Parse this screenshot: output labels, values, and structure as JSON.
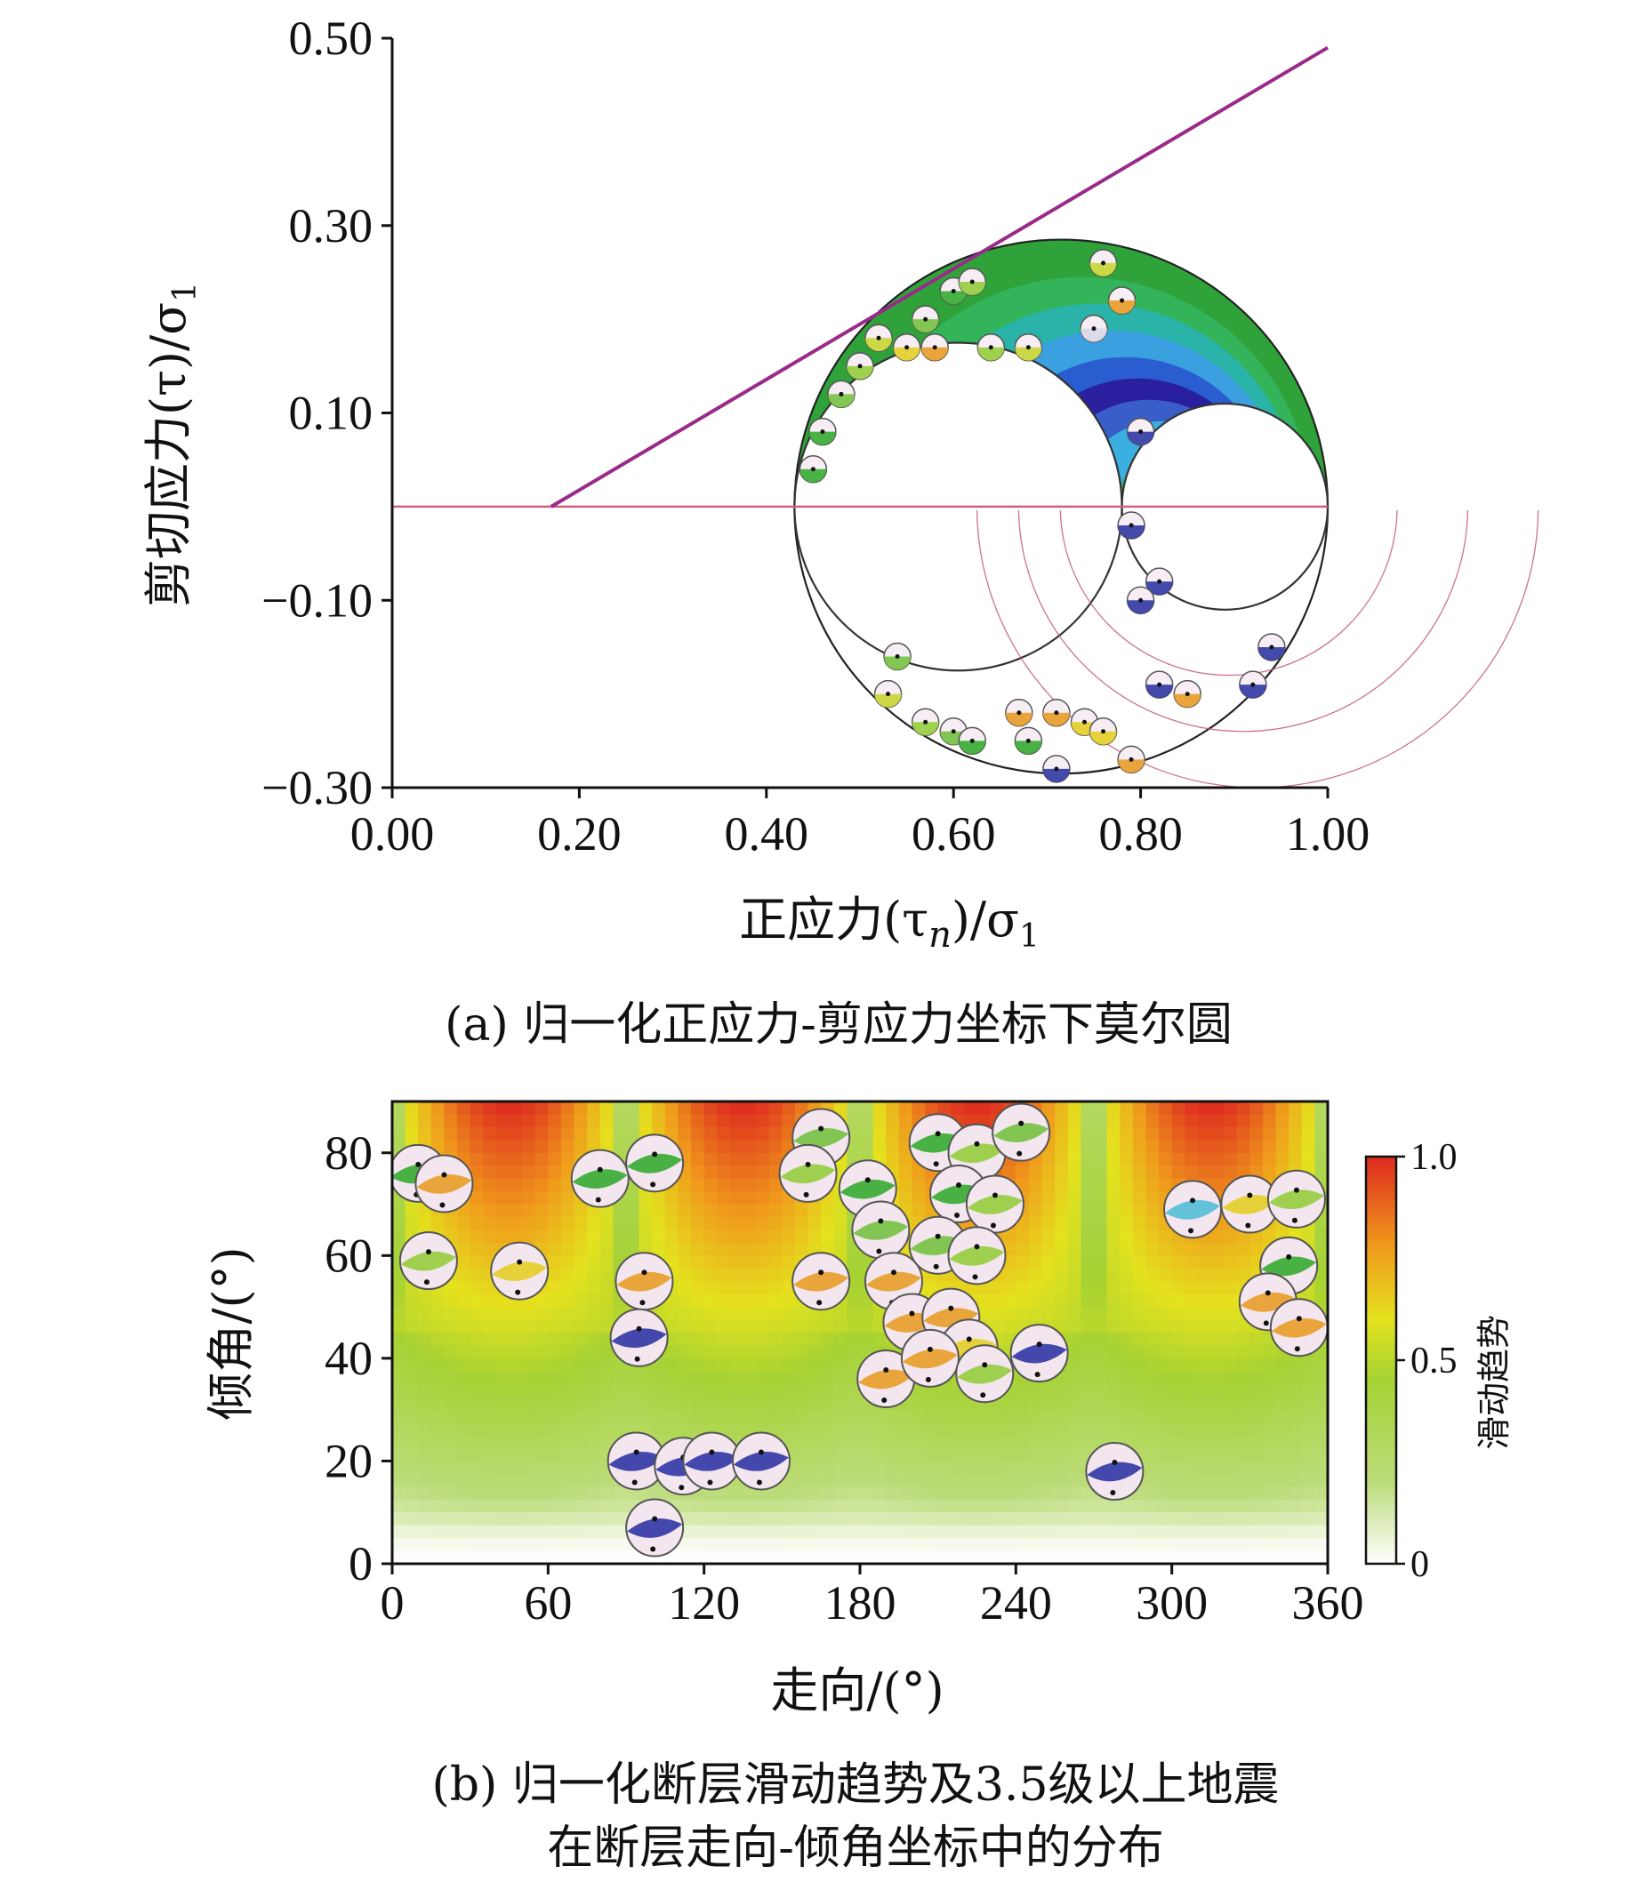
{
  "chart_data": [
    {
      "type": "scatter",
      "panel": "a",
      "caption": "(a) 归一化正应力-剪应力坐标下莫尔圆",
      "xlabel": "正应力(τ",
      "xlabel_sub": "n",
      "xlabel_tail": ")/σ",
      "xlabel_tail_sub": "1",
      "ylabel": "剪切应力(τ)/σ",
      "ylabel_sub": "1",
      "xlim": [
        0.0,
        1.0
      ],
      "ylim": [
        -0.3,
        0.5
      ],
      "xticks": [
        "0.00",
        "0.20",
        "0.40",
        "0.60",
        "0.80",
        "1.00"
      ],
      "yticks": [
        "0.50",
        "0.30",
        "0.10",
        "−0.10",
        "−0.30"
      ],
      "failure_line": {
        "x": [
          0.17,
          1.0
        ],
        "y": [
          0.0,
          0.49
        ]
      },
      "baseline_y": 0.0,
      "mohr_circles": [
        {
          "sigma3": 0.43,
          "sigma1": 1.0
        },
        {
          "sigma3": 0.43,
          "sigma2": 0.78
        },
        {
          "sigma2": 0.78,
          "sigma1": 1.0
        }
      ],
      "points": [
        {
          "x": 0.45,
          "y": 0.04,
          "c": "#3fae3a"
        },
        {
          "x": 0.46,
          "y": 0.08,
          "c": "#3fae3a"
        },
        {
          "x": 0.48,
          "y": 0.12,
          "c": "#7bc34a"
        },
        {
          "x": 0.5,
          "y": 0.15,
          "c": "#9acd44"
        },
        {
          "x": 0.52,
          "y": 0.18,
          "c": "#c9d63b"
        },
        {
          "x": 0.55,
          "y": 0.17,
          "c": "#e5d030"
        },
        {
          "x": 0.57,
          "y": 0.2,
          "c": "#7bc34a"
        },
        {
          "x": 0.6,
          "y": 0.23,
          "c": "#3fae3a"
        },
        {
          "x": 0.62,
          "y": 0.24,
          "c": "#9acd44"
        },
        {
          "x": 0.58,
          "y": 0.17,
          "c": "#e8a030"
        },
        {
          "x": 0.64,
          "y": 0.17,
          "c": "#9acd44"
        },
        {
          "x": 0.68,
          "y": 0.17,
          "c": "#c9d63b"
        },
        {
          "x": 0.76,
          "y": 0.26,
          "c": "#c9d63b"
        },
        {
          "x": 0.78,
          "y": 0.22,
          "c": "#e8a030"
        },
        {
          "x": 0.75,
          "y": 0.19,
          "c": "#d8d8e8"
        },
        {
          "x": 0.8,
          "y": 0.08,
          "c": "#3a3fa8"
        },
        {
          "x": 0.79,
          "y": -0.02,
          "c": "#3a3fa8"
        },
        {
          "x": 0.82,
          "y": -0.08,
          "c": "#3a3fa8"
        },
        {
          "x": 0.8,
          "y": -0.1,
          "c": "#3a3fa8"
        },
        {
          "x": 0.94,
          "y": -0.15,
          "c": "#3a3fa8"
        },
        {
          "x": 0.92,
          "y": -0.19,
          "c": "#3a3fa8"
        },
        {
          "x": 0.82,
          "y": -0.19,
          "c": "#3a3fa8"
        },
        {
          "x": 0.85,
          "y": -0.2,
          "c": "#e8a030"
        },
        {
          "x": 0.54,
          "y": -0.16,
          "c": "#7bc34a"
        },
        {
          "x": 0.53,
          "y": -0.2,
          "c": "#c9d63b"
        },
        {
          "x": 0.57,
          "y": -0.23,
          "c": "#9acd44"
        },
        {
          "x": 0.6,
          "y": -0.24,
          "c": "#7bc34a"
        },
        {
          "x": 0.62,
          "y": -0.25,
          "c": "#3fae3a"
        },
        {
          "x": 0.68,
          "y": -0.25,
          "c": "#3fae3a"
        },
        {
          "x": 0.67,
          "y": -0.22,
          "c": "#e8a030"
        },
        {
          "x": 0.71,
          "y": -0.22,
          "c": "#e8a030"
        },
        {
          "x": 0.74,
          "y": -0.23,
          "c": "#e5d030"
        },
        {
          "x": 0.76,
          "y": -0.24,
          "c": "#e5d030"
        },
        {
          "x": 0.71,
          "y": -0.28,
          "c": "#3a3fa8"
        },
        {
          "x": 0.79,
          "y": -0.27,
          "c": "#e8a030"
        }
      ]
    },
    {
      "type": "heatmap",
      "panel": "b",
      "caption_line1": "(b) 归一化断层滑动趋势及3.5级以上地震",
      "caption_line2": "在断层走向-倾角坐标中的分布",
      "xlabel": "走向/(°)",
      "ylabel": "倾角/(°)",
      "xlim": [
        0,
        360
      ],
      "ylim": [
        0,
        90
      ],
      "xticks": [
        "0",
        "60",
        "120",
        "180",
        "240",
        "300",
        "360"
      ],
      "yticks": [
        "80",
        "60",
        "40",
        "20",
        "0"
      ],
      "colorbar": {
        "label": "滑动趋势",
        "ticks": [
          "1.0",
          "0.5",
          "0"
        ],
        "range": [
          0,
          1
        ]
      },
      "points": [
        {
          "x": 10,
          "y": 76,
          "c": "#3fae3a"
        },
        {
          "x": 20,
          "y": 74,
          "c": "#e8a030"
        },
        {
          "x": 14,
          "y": 59,
          "c": "#9acd44"
        },
        {
          "x": 49,
          "y": 57,
          "c": "#e5d030"
        },
        {
          "x": 80,
          "y": 75,
          "c": "#3fae3a"
        },
        {
          "x": 101,
          "y": 78,
          "c": "#3fae3a"
        },
        {
          "x": 97,
          "y": 55,
          "c": "#e8a030"
        },
        {
          "x": 95,
          "y": 44,
          "c": "#3a3fa8"
        },
        {
          "x": 94,
          "y": 20,
          "c": "#3a3fa8"
        },
        {
          "x": 112,
          "y": 19,
          "c": "#3a3fa8"
        },
        {
          "x": 123,
          "y": 20,
          "c": "#3a3fa8"
        },
        {
          "x": 142,
          "y": 20,
          "c": "#3a3fa8"
        },
        {
          "x": 101,
          "y": 7,
          "c": "#3a3fa8"
        },
        {
          "x": 165,
          "y": 83,
          "c": "#7bc34a"
        },
        {
          "x": 160,
          "y": 76,
          "c": "#9acd44"
        },
        {
          "x": 165,
          "y": 55,
          "c": "#e8a030"
        },
        {
          "x": 183,
          "y": 73,
          "c": "#3fae3a"
        },
        {
          "x": 188,
          "y": 65,
          "c": "#7bc34a"
        },
        {
          "x": 193,
          "y": 55,
          "c": "#e8a030"
        },
        {
          "x": 200,
          "y": 47,
          "c": "#e8a030"
        },
        {
          "x": 190,
          "y": 36,
          "c": "#e8a030"
        },
        {
          "x": 210,
          "y": 82,
          "c": "#3fae3a"
        },
        {
          "x": 225,
          "y": 80,
          "c": "#9acd44"
        },
        {
          "x": 242,
          "y": 84,
          "c": "#7bc34a"
        },
        {
          "x": 218,
          "y": 72,
          "c": "#3fae3a"
        },
        {
          "x": 232,
          "y": 70,
          "c": "#9acd44"
        },
        {
          "x": 210,
          "y": 62,
          "c": "#7bc34a"
        },
        {
          "x": 225,
          "y": 60,
          "c": "#9acd44"
        },
        {
          "x": 215,
          "y": 48,
          "c": "#e8a030"
        },
        {
          "x": 222,
          "y": 42,
          "c": "#e5d030"
        },
        {
          "x": 207,
          "y": 40,
          "c": "#e8a030"
        },
        {
          "x": 228,
          "y": 37,
          "c": "#9acd44"
        },
        {
          "x": 249,
          "y": 41,
          "c": "#3a3fa8"
        },
        {
          "x": 278,
          "y": 18,
          "c": "#3a3fa8"
        },
        {
          "x": 308,
          "y": 69,
          "c": "#5bc0d8"
        },
        {
          "x": 330,
          "y": 70,
          "c": "#e5d030"
        },
        {
          "x": 348,
          "y": 71,
          "c": "#9acd44"
        },
        {
          "x": 345,
          "y": 58,
          "c": "#3fae3a"
        },
        {
          "x": 337,
          "y": 51,
          "c": "#e8a030"
        },
        {
          "x": 349,
          "y": 46,
          "c": "#e8a030"
        }
      ]
    }
  ]
}
